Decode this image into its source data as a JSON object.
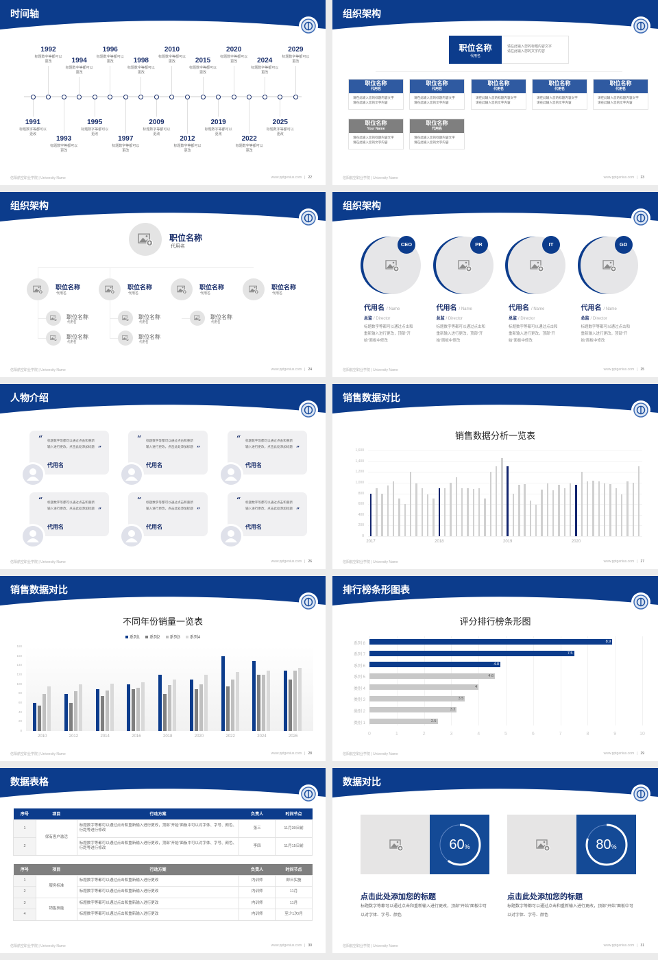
{
  "colors": {
    "brand": "#0c3c8c",
    "navy": "#13256e",
    "gray_bar": "#d0d0d0",
    "dark_gray": "#7f7f7f"
  },
  "footer": {
    "school": "信阳航空职业学院 | University Name",
    "site": "www.pptgenius.com"
  },
  "slides": [
    {
      "title": "时间轴",
      "page": "22",
      "timeline": [
        {
          "year": "1991",
          "desc": "标题数字等都可以更改"
        },
        {
          "year": "1992",
          "desc": "标题数字等都可以更改"
        },
        {
          "year": "1993",
          "desc": "标题数字等都可以更改"
        },
        {
          "year": "1994",
          "desc": "标题数字等都可以更改"
        },
        {
          "year": "1995",
          "desc": "标题数字等都可以更改"
        },
        {
          "year": "1996",
          "desc": "标题数字等都可以更改"
        },
        {
          "year": "1997",
          "desc": "标题数字等都可以更改"
        },
        {
          "year": "1998",
          "desc": "标题数字等都可以更改"
        },
        {
          "year": "2009",
          "desc": "标题数字等都可以更改"
        },
        {
          "year": "2010",
          "desc": "标题数字等都可以更改"
        },
        {
          "year": "2012",
          "desc": "标题数字等都可以更改"
        },
        {
          "year": "2015",
          "desc": "标题数字等都可以更改"
        },
        {
          "year": "2019",
          "desc": "标题数字等都可以更改"
        },
        {
          "year": "2020",
          "desc": "标题数字等都可以更改"
        },
        {
          "year": "2022",
          "desc": "标题数字等都可以更改"
        },
        {
          "year": "2024",
          "desc": "标题数字等都可以更改"
        },
        {
          "year": "2025",
          "desc": "标题数字等都可以更改"
        },
        {
          "year": "2029",
          "desc": "标题数字等都可以更改"
        }
      ]
    },
    {
      "title": "组织架构",
      "page": "23",
      "top": {
        "name": "职位名称",
        "code": "代用名",
        "desc": [
          "请在此输入您的标题内容文字",
          "请在此输入您的文字内容"
        ]
      },
      "boxes": [
        {
          "name": "职位名称",
          "code": "代用名",
          "desc": [
            "请在此输入您的标题内容文字",
            "请在此输入您的文字内容"
          ],
          "tone": "blue"
        },
        {
          "name": "职位名称",
          "code": "代用名",
          "desc": [
            "请在此输入您的标题内容文字",
            "请在此输入您的文字内容"
          ],
          "tone": "blue"
        },
        {
          "name": "职位名称",
          "code": "代用名",
          "desc": [
            "请在此输入您的标题内容文字",
            "请在此输入您的文字内容"
          ],
          "tone": "blue"
        },
        {
          "name": "职位名称",
          "code": "代用名",
          "desc": [
            "请在此输入您的标题内容文字",
            "请在此输入您的文字内容"
          ],
          "tone": "blue"
        },
        {
          "name": "职位名称",
          "code": "代用名",
          "desc": [
            "请在此输入您的标题内容文字",
            "请在此输入您的文字内容"
          ],
          "tone": "blue"
        },
        {
          "name": "职位名称",
          "code": "Your Name",
          "desc": [
            "请在此输入您的标题内容文字",
            "请在此输入您的文字内容"
          ],
          "tone": "gray"
        },
        {
          "name": "职位名称",
          "code": "代用名",
          "desc": [
            "请在此输入您的标题内容文字",
            "请在此输入您的文字内容"
          ],
          "tone": "gray"
        }
      ]
    },
    {
      "title": "组织架构",
      "page": "24",
      "top": {
        "name": "职位名称",
        "code": "代用名"
      },
      "mids": [
        {
          "name": "职位名称",
          "code": "代用名"
        },
        {
          "name": "职位名称",
          "code": "代用名"
        },
        {
          "name": "职位名称",
          "code": "代用名"
        },
        {
          "name": "职位名称",
          "code": "代用名"
        }
      ],
      "subs": [
        {
          "name": "职位名称",
          "code": "代用名"
        },
        {
          "name": "职位名称",
          "code": "代用名"
        },
        {
          "name": "职位名称",
          "code": "代用名"
        },
        {
          "name": "职位名称",
          "code": "代用名"
        },
        {
          "name": "职位名称",
          "code": "代用名"
        }
      ]
    },
    {
      "title": "组织架构",
      "page": "25",
      "people": [
        {
          "badge": "CEO",
          "name": "代用名",
          "name_en": "/ Name",
          "role": "总监",
          "role_en": "/  Director",
          "desc": "标题数字等都可以通过点击和重新输入进行更改，顶部“开始”面板中修改"
        },
        {
          "badge": "PR",
          "name": "代用名",
          "name_en": "/ Name",
          "role": "总监",
          "role_en": "/  Director",
          "desc": "标题数字等都可以通过点击和重新输入进行更改，顶部“开始”面板中修改"
        },
        {
          "badge": "IT",
          "name": "代用名",
          "name_en": "/ Name",
          "role": "总监",
          "role_en": "/  Director",
          "desc": "标题数字等都可以通过点击和重新输入进行更改，顶部“开始”面板中修改"
        },
        {
          "badge": "GD",
          "name": "代用名",
          "name_en": "/ Name",
          "role": "总监",
          "role_en": "/  Director",
          "desc": "标题数字等都可以通过点击和重新输入进行更改，顶部“开始”面板中修改"
        }
      ]
    },
    {
      "title": "人物介绍",
      "page": "26",
      "cards": [
        {
          "quote": "标题数字等都可以通过点击和重新输入进行更改，点击此处添加标题",
          "name": "代用名"
        },
        {
          "quote": "标题数字等都可以通过点击和重新输入进行更改，点击此处添加标题",
          "name": "代用名"
        },
        {
          "quote": "标题数字等都可以通过点击和重新输入进行更改，点击此处添加标题",
          "name": "代用名"
        },
        {
          "quote": "标题数字等都可以通过点击和重新输入进行更改，点击此处添加标题",
          "name": "代用名"
        },
        {
          "quote": "标题数字等都可以通过点击和重新输入进行更改，点击此处添加标题",
          "name": "代用名"
        },
        {
          "quote": "标题数字等都可以通过点击和重新输入进行更改，点击此处添加标题",
          "name": "代用名"
        }
      ]
    },
    {
      "title": "销售数据对比",
      "page": "27"
    },
    {
      "title": "销售数据对比",
      "page": "28"
    },
    {
      "title": "排行榜条形图表",
      "page": "29"
    },
    {
      "title": "数据表格",
      "page": "30",
      "table1": {
        "headers": [
          "序号",
          "项目",
          "行动方案",
          "负责人",
          "时间节点"
        ],
        "group": "保有客户激活",
        "rows": [
          [
            "1",
            "标题数字等都可以通过点击和重新输入进行更改，顶部“开始”面板中可以对字体、字号、颜色、行距等进行修改",
            "张三",
            "11月30日前"
          ],
          [
            "2",
            "标题数字等都可以通过点击和重新输入进行更改，顶部“开始”面板中可以对字体、字号、颜色、行距等进行修改",
            "李四",
            "11月15日前"
          ]
        ]
      },
      "table2": {
        "headers": [
          "序号",
          "项目",
          "行动方案",
          "负责人",
          "时间节点"
        ],
        "groups": [
          "服务标准",
          "销售技能"
        ],
        "rows": [
          [
            "1",
            "标题数字等都可以通过点击和重新输入进行更改",
            "内训师",
            "即日实施"
          ],
          [
            "2",
            "标题数字等都可以通过点击和重新输入进行更改",
            "内训师",
            "11月"
          ],
          [
            "3",
            "标题数字等都可以通过点击和重新输入进行更改",
            "内训师",
            "11月"
          ],
          [
            "4",
            "标题数字等都可以通过点击和重新输入进行更改",
            "内训师",
            "至少1次/月"
          ]
        ]
      }
    },
    {
      "title": "数据对比",
      "page": "31",
      "panels": [
        {
          "percent": 60,
          "value": "60",
          "unit": "%",
          "title": "点击此处添加您的标题",
          "desc": "标题数字等都可以通过点击和重新输入进行更改，顶部“开始”面板中可以对字体、字号、颜色"
        },
        {
          "percent": 80,
          "value": "80",
          "unit": "%",
          "title": "点击此处添加您的标题",
          "desc": "标题数字等都可以通过点击和重新输入进行更改，顶部“开始”面板中可以对字体、字号、颜色"
        }
      ]
    }
  ],
  "chart_data": [
    {
      "type": "bar",
      "title": "销售数据分析一览表",
      "ylim": [
        0,
        1600
      ],
      "yticks": [
        "0",
        "200",
        "400",
        "600",
        "800",
        "1,000",
        "1,200",
        "1,400",
        "1,600"
      ],
      "xtick_labels": [
        "2017",
        "2018",
        "2019",
        "2020"
      ],
      "highlight_every": 12,
      "values": [
        800,
        900,
        800,
        950,
        1020,
        700,
        600,
        1200,
        985,
        890,
        780,
        700,
        890,
        890,
        1000,
        1100,
        900,
        900,
        880,
        900,
        700,
        1200,
        1300,
        1460,
        1300,
        800,
        965,
        975,
        660,
        590,
        875,
        985,
        860,
        960,
        890,
        980,
        955,
        1200,
        1020,
        1035,
        1025,
        980,
        975,
        890,
        780,
        1020,
        1000,
        1300
      ]
    },
    {
      "type": "bar",
      "title": "不同年份销量一览表",
      "ylim": [
        0,
        180
      ],
      "yticks": [
        "0",
        "20",
        "40",
        "60",
        "80",
        "100",
        "120",
        "140",
        "160",
        "180"
      ],
      "categories": [
        "2010",
        "2012",
        "2014",
        "2016",
        "2018",
        "2020",
        "2022",
        "2024",
        "2026"
      ],
      "legend": "top",
      "series": [
        {
          "name": "系列1",
          "color": "#0c3c8c",
          "values": [
            60,
            79,
            89,
            100,
            120,
            110,
            160,
            150,
            129
          ]
        },
        {
          "name": "系列2",
          "color": "#7f7f7f",
          "values": [
            54,
            60,
            75,
            89,
            79,
            89,
            95,
            120,
            110
          ]
        },
        {
          "name": "系列3",
          "color": "#bfbfbf",
          "values": [
            79,
            85,
            87,
            92,
            98,
            100,
            110,
            120,
            129
          ]
        },
        {
          "name": "系列4",
          "color": "#d9d9d9",
          "values": [
            95,
            99,
            101,
            104,
            110,
            120,
            126,
            129,
            134
          ]
        }
      ]
    },
    {
      "type": "bar",
      "orientation": "horizontal",
      "title": "评分排行榜条形图",
      "xlim": [
        0,
        10
      ],
      "xticks": [
        "0",
        "1",
        "2",
        "3",
        "4",
        "5",
        "6",
        "7",
        "8",
        "9",
        "10"
      ],
      "categories": [
        "类别 1",
        "类别 2",
        "类别 3",
        "类别 4",
        "系列 5",
        "系列 6",
        "系列 7",
        "系列 8"
      ],
      "values": [
        2.5,
        3.2,
        3.5,
        4,
        4.6,
        4.8,
        7.5,
        8.9
      ],
      "labels": [
        "2.5",
        "3.2",
        "3.5",
        "4",
        "4.6",
        "4.8",
        "7.5",
        "8.9"
      ],
      "highlight": [
        false,
        false,
        false,
        false,
        false,
        true,
        true,
        true
      ]
    }
  ]
}
